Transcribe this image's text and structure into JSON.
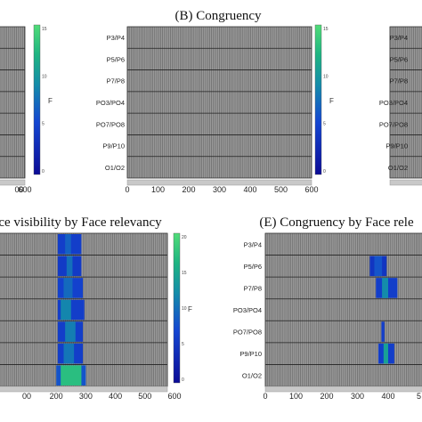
{
  "chart_data": [
    {
      "type": "heatmap",
      "id": "A",
      "title": "",
      "rows": [],
      "xticks": [
        "00",
        "600"
      ],
      "xlim": [
        0,
        600
      ],
      "colorbar_label": "F",
      "colorbar_ticks": [
        "15",
        "10",
        "5",
        "0"
      ],
      "cells": []
    },
    {
      "type": "heatmap",
      "id": "B",
      "title": "(B) Congruency",
      "rows": [
        "P3/P4",
        "P5/P6",
        "P7/P8",
        "PO3/PO4",
        "PO7/PO8",
        "P9/P10",
        "O1/O2"
      ],
      "xticks": [
        "0",
        "100",
        "200",
        "300",
        "400",
        "500",
        "600"
      ],
      "xlim": [
        0,
        600
      ],
      "colorbar_label": "F",
      "colorbar_ticks": [
        "15",
        "10",
        "5",
        "0"
      ],
      "cells": []
    },
    {
      "type": "heatmap",
      "id": "C",
      "title": "",
      "rows": [
        "P3/P4",
        "P5/P6",
        "P7/P8",
        "PO3/PO4",
        "PO7/PO8",
        "P9/P10",
        "O1/O2"
      ],
      "xticks": [],
      "xlim": [
        0,
        600
      ],
      "cells": []
    },
    {
      "type": "heatmap",
      "id": "D",
      "title": "ce visibility by Face relevancy",
      "rows": [],
      "xticks": [
        "00",
        "200",
        "300",
        "400",
        "500",
        "600"
      ],
      "xlim": [
        0,
        600
      ],
      "colorbar_label": "F",
      "colorbar_ticks": [
        "20",
        "15",
        "10",
        "5",
        "0"
      ],
      "cells": [
        {
          "row": 0,
          "x0": 205,
          "x1": 285,
          "v": 0.3
        },
        {
          "row": 0,
          "x0": 230,
          "x1": 250,
          "v": 0.45
        },
        {
          "row": 1,
          "x0": 205,
          "x1": 285,
          "v": 0.28
        },
        {
          "row": 1,
          "x0": 235,
          "x1": 255,
          "v": 0.5
        },
        {
          "row": 2,
          "x0": 205,
          "x1": 290,
          "v": 0.32
        },
        {
          "row": 2,
          "x0": 225,
          "x1": 255,
          "v": 0.48
        },
        {
          "row": 3,
          "x0": 205,
          "x1": 295,
          "v": 0.3
        },
        {
          "row": 3,
          "x0": 215,
          "x1": 250,
          "v": 0.58
        },
        {
          "row": 4,
          "x0": 205,
          "x1": 290,
          "v": 0.3
        },
        {
          "row": 4,
          "x0": 230,
          "x1": 265,
          "v": 0.55
        },
        {
          "row": 5,
          "x0": 205,
          "x1": 290,
          "v": 0.3
        },
        {
          "row": 5,
          "x0": 225,
          "x1": 260,
          "v": 0.52
        },
        {
          "row": 6,
          "x0": 200,
          "x1": 300,
          "v": 0.4
        },
        {
          "row": 6,
          "x0": 215,
          "x1": 285,
          "v": 0.85
        }
      ]
    },
    {
      "type": "heatmap",
      "id": "E",
      "title": "(E) Congruency by Face rele",
      "rows": [
        "P3/P4",
        "P5/P6",
        "P7/P8",
        "PO3/PO4",
        "PO7/PO8",
        "P9/P10",
        "O1/O2"
      ],
      "xticks": [
        "0",
        "100",
        "200",
        "300",
        "400",
        "5"
      ],
      "xlim": [
        0,
        600
      ],
      "cells": [
        {
          "row": 1,
          "x0": 340,
          "x1": 395,
          "v": 0.25
        },
        {
          "row": 1,
          "x0": 355,
          "x1": 380,
          "v": 0.4
        },
        {
          "row": 2,
          "x0": 360,
          "x1": 430,
          "v": 0.3
        },
        {
          "row": 2,
          "x0": 380,
          "x1": 400,
          "v": 0.6
        },
        {
          "row": 4,
          "x0": 378,
          "x1": 388,
          "v": 0.3
        },
        {
          "row": 5,
          "x0": 368,
          "x1": 420,
          "v": 0.3
        },
        {
          "row": 5,
          "x0": 385,
          "x1": 400,
          "v": 0.7
        }
      ]
    }
  ]
}
